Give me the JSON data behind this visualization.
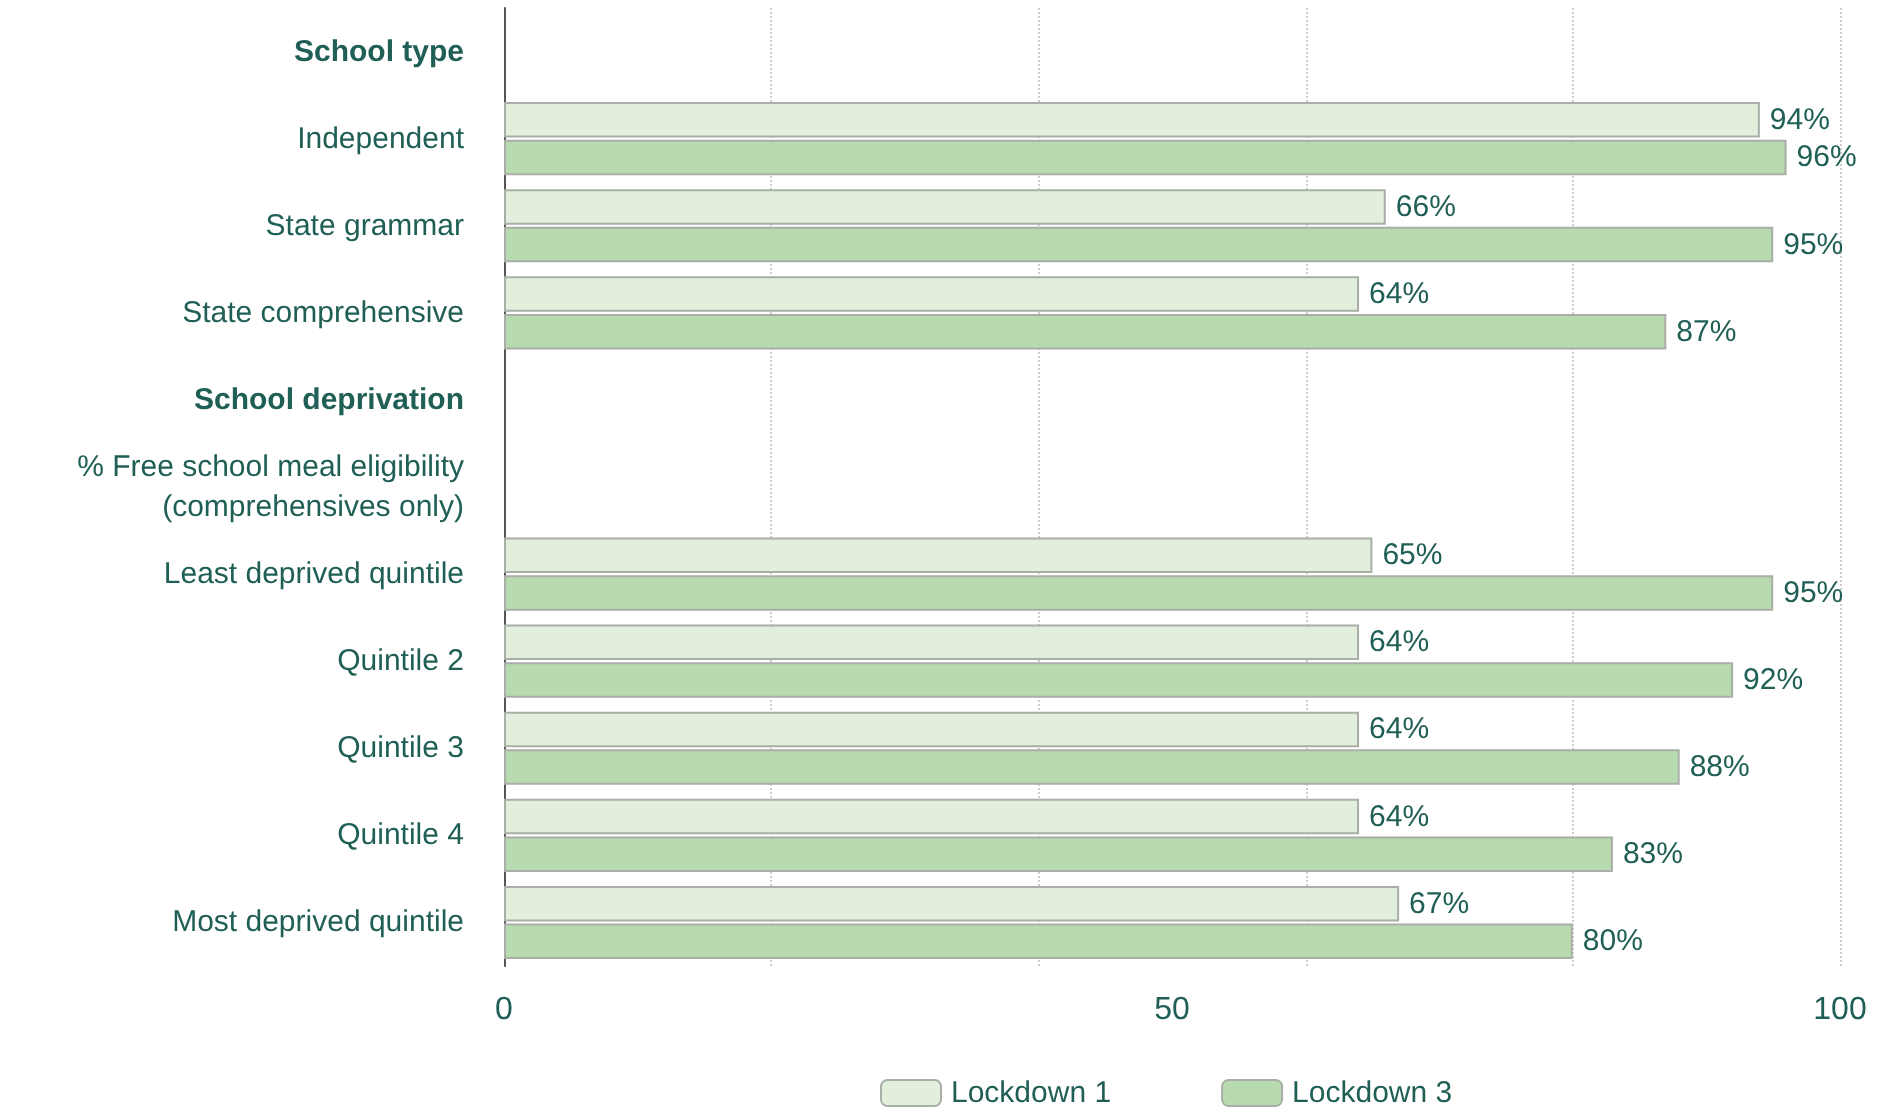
{
  "chart_data": {
    "type": "bar",
    "orientation": "horizontal",
    "categories": [
      "School type",
      "Independent",
      "State grammar",
      "State comprehensive",
      "School deprivation",
      "% Free school meal eligibility\n(comprehensives only)",
      "Least deprived quintile",
      "Quintile 2",
      "Quintile 3",
      "Quintile 4",
      "Most deprived quintile"
    ],
    "series": [
      {
        "name": "Lockdown 1",
        "color": "#e2efdc",
        "values": [
          null,
          94,
          66,
          64,
          null,
          null,
          65,
          64,
          64,
          64,
          67
        ],
        "value_labels": [
          null,
          "94%",
          "66%",
          "64%",
          null,
          null,
          "65%",
          "64%",
          "64%",
          "64%",
          "67%"
        ]
      },
      {
        "name": "Lockdown 3",
        "color": "#b8dab0",
        "values": [
          null,
          96,
          95,
          87,
          null,
          null,
          95,
          92,
          88,
          83,
          80
        ],
        "value_labels": [
          null,
          "96%",
          "95%",
          "87%",
          null,
          null,
          "95%",
          "92%",
          "88%",
          "83%",
          "80%"
        ]
      }
    ],
    "xlim": [
      0,
      100
    ],
    "xticks": [
      0,
      50,
      100
    ],
    "grid": "x",
    "legend": "bottom"
  }
}
